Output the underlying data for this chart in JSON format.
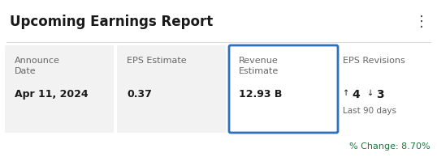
{
  "title": "Upcoming Earnings Report",
  "title_fontsize": 12,
  "bg_color": "#ffffff",
  "card_bg": "#f2f2f2",
  "highlight_border_color": "#2e6fbe",
  "text_color": "#1a1a1a",
  "label_color": "#666666",
  "green_color": "#1a7a3c",
  "dots_color": "#444444",
  "col1_label": "Announce\nDate",
  "col1_value": "Apr 11, 2024",
  "col2_label": "EPS Estimate",
  "col2_value": "0.37",
  "col3_label": "Revenue\nEstimate",
  "col3_value": "12.93 B",
  "col4_label": "EPS Revisions",
  "col4_up": "4",
  "col4_down": "3",
  "col4_sub": "Last 90 days",
  "pct_change_label": "% Change: 8.70%",
  "up_arrow": "↑",
  "down_arrow": "↓",
  "divider_color": "#dddddd"
}
